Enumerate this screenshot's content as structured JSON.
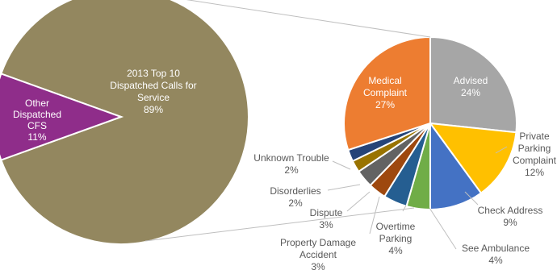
{
  "chart_data": [
    {
      "type": "pie",
      "title": "",
      "slices": [
        {
          "label_lines": [
            "2013 Top 10",
            "Dispatched Calls for",
            "Service",
            "89%"
          ],
          "value": 89,
          "color": "#93875f"
        },
        {
          "label_lines": [
            "Other",
            "Dispatched",
            "CFS",
            "11%"
          ],
          "value": 11,
          "color": "#8f2d8a"
        }
      ]
    },
    {
      "type": "pie",
      "title": "",
      "slices": [
        {
          "label_lines": [
            "Advised",
            "24%"
          ],
          "value": 24,
          "color": "#a6a6a6"
        },
        {
          "label_lines": [
            "Private",
            "Parking",
            "Complaint",
            "12%"
          ],
          "value": 12,
          "color": "#ffc000"
        },
        {
          "label_lines": [
            "Check Address",
            "9%"
          ],
          "value": 9,
          "color": "#4472c4"
        },
        {
          "label_lines": [
            "See Ambulance",
            "4%"
          ],
          "value": 4,
          "color": "#70ad47"
        },
        {
          "label_lines": [
            "Overtime",
            "Parking",
            "4%"
          ],
          "value": 4,
          "color": "#255e91"
        },
        {
          "label_lines": [
            "Property Damage",
            "Accident",
            "3%"
          ],
          "value": 3,
          "color": "#9e480e"
        },
        {
          "label_lines": [
            "Dispute",
            "3%"
          ],
          "value": 3,
          "color": "#636363"
        },
        {
          "label_lines": [
            "Disorderlies",
            "2%"
          ],
          "value": 2,
          "color": "#997300"
        },
        {
          "label_lines": [
            "Unknown Trouble",
            "2%"
          ],
          "value": 2,
          "color": "#264478"
        },
        {
          "label_lines": [
            "Medical",
            "Complaint",
            "27%"
          ],
          "value": 27,
          "color": "#ed7d31"
        }
      ]
    }
  ]
}
